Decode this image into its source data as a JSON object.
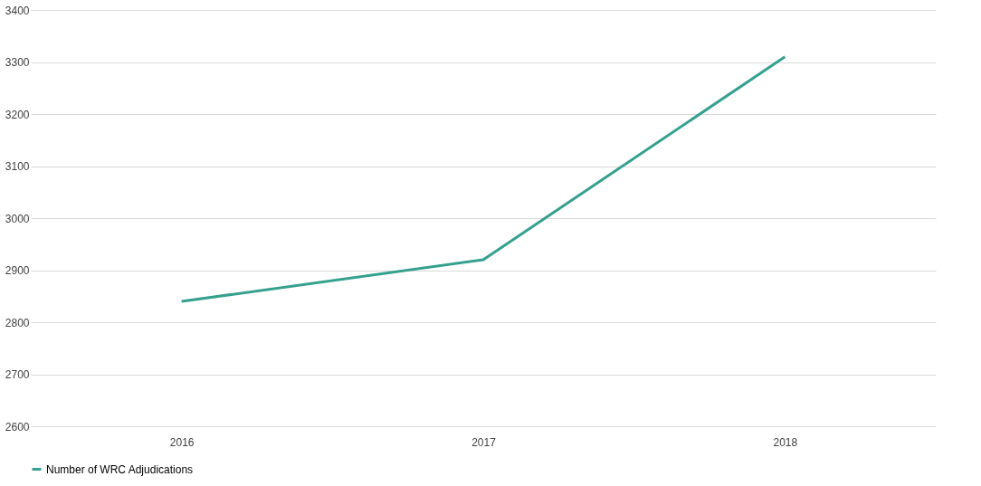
{
  "chart_data": {
    "type": "line",
    "categories": [
      "2016",
      "2017",
      "2018"
    ],
    "series": [
      {
        "name": "Number of WRC Adjudications",
        "color": "#35a08e",
        "values": [
          2840,
          2920,
          3310
        ]
      }
    ],
    "ylim": [
      2600,
      3400
    ],
    "yticks": [
      2600,
      2700,
      2800,
      2900,
      3000,
      3100,
      3200,
      3300,
      3400
    ],
    "grid": "y",
    "legend": "bottom",
    "marker": "none",
    "line_style": "solid"
  }
}
